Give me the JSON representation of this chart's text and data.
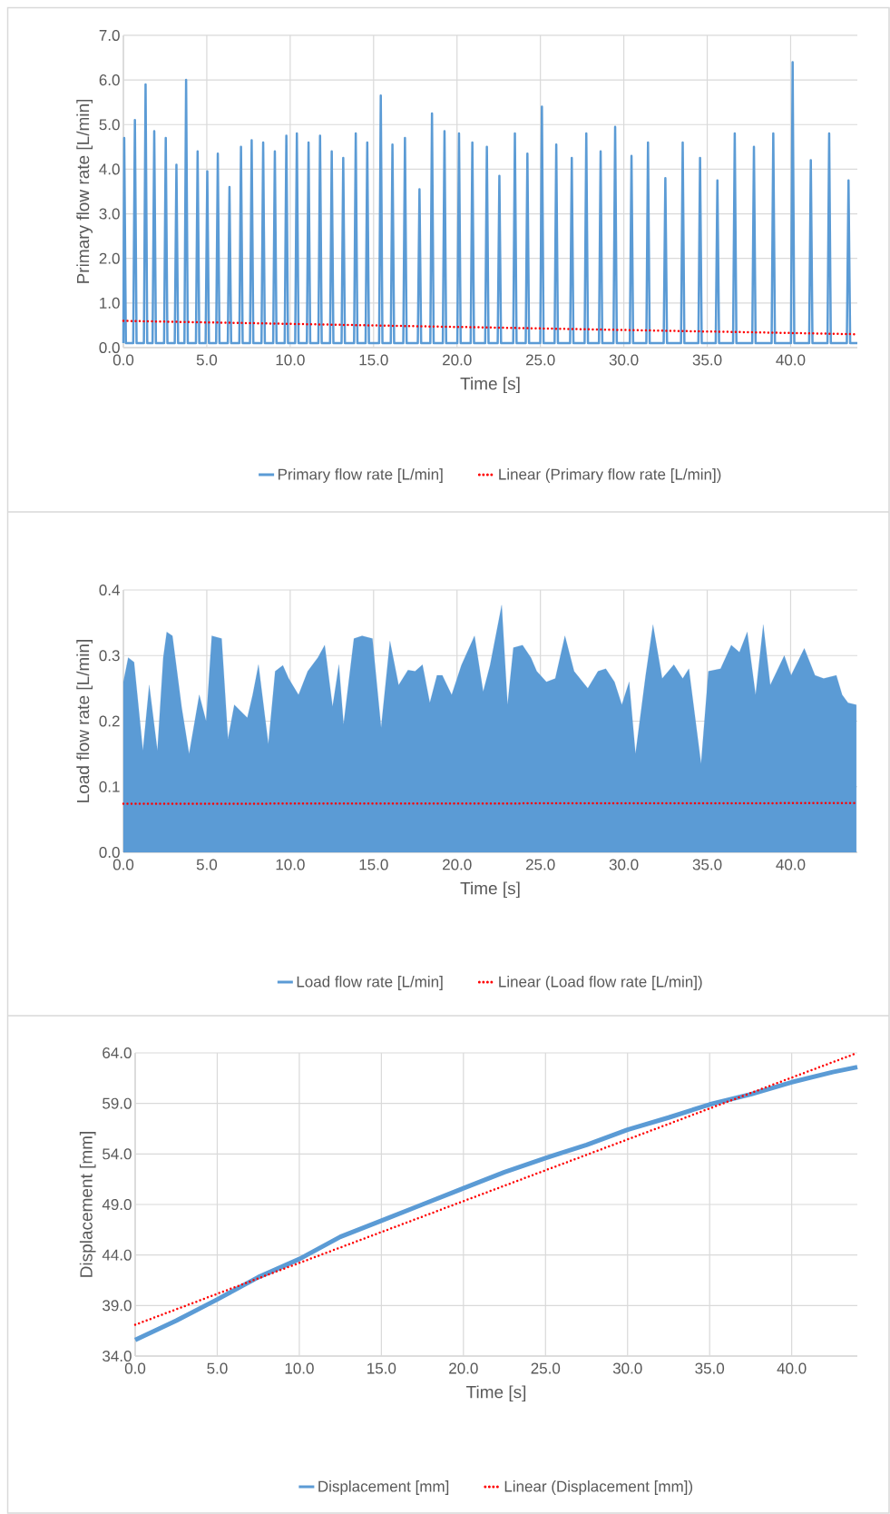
{
  "chart_data": [
    {
      "type": "line",
      "xlabel": "Time [s]",
      "ylabel": "Primary flow rate [L/min]",
      "xlim": [
        0,
        44
      ],
      "ylim": [
        0,
        7
      ],
      "xticks": [
        {
          "value": 0,
          "label": "0.0"
        },
        {
          "value": 5,
          "label": "5.0"
        },
        {
          "value": 10,
          "label": "10.0"
        },
        {
          "value": 15,
          "label": "15.0"
        },
        {
          "value": 20,
          "label": "20.0"
        },
        {
          "value": 25,
          "label": "25.0"
        },
        {
          "value": 30,
          "label": "30.0"
        },
        {
          "value": 35,
          "label": "35.0"
        },
        {
          "value": 40,
          "label": "40.0"
        }
      ],
      "yticks": [
        {
          "value": 0,
          "label": "0.0"
        },
        {
          "value": 1,
          "label": "1.0"
        },
        {
          "value": 2,
          "label": "2.0"
        },
        {
          "value": 3,
          "label": "3.0"
        },
        {
          "value": 4,
          "label": "4.0"
        },
        {
          "value": 5,
          "label": "5.0"
        },
        {
          "value": 6,
          "label": "6.0"
        },
        {
          "value": 7,
          "label": "7.0"
        }
      ],
      "grid": true,
      "legend": "bottom",
      "series": [
        {
          "name": "Primary flow rate [L/min]",
          "color": "#5b9bd5",
          "line_style": "solid",
          "x": [
            0.0,
            0.05,
            0.15,
            0.59,
            0.69,
            0.79,
            1.23,
            1.33,
            1.43,
            1.75,
            1.85,
            1.95,
            2.44,
            2.54,
            2.64,
            3.08,
            3.18,
            3.28,
            3.66,
            3.76,
            3.86,
            4.35,
            4.45,
            4.55,
            4.93,
            5.03,
            5.13,
            5.56,
            5.66,
            5.76,
            6.26,
            6.36,
            6.46,
            6.95,
            7.05,
            7.15,
            7.59,
            7.69,
            7.79,
            8.28,
            8.38,
            8.48,
            8.98,
            9.08,
            9.18,
            9.67,
            9.77,
            9.87,
            10.3,
            10.4,
            10.5,
            11.0,
            11.1,
            11.2,
            11.69,
            11.79,
            11.89,
            12.39,
            12.49,
            12.59,
            13.08,
            13.18,
            13.28,
            13.83,
            13.93,
            14.03,
            14.52,
            14.62,
            14.72,
            15.33,
            15.43,
            15.53,
            16.03,
            16.13,
            16.23,
            16.78,
            16.88,
            16.98,
            17.65,
            17.75,
            17.85,
            18.4,
            18.5,
            18.6,
            19.15,
            19.25,
            19.35,
            20.02,
            20.12,
            20.22,
            20.82,
            20.92,
            21.02,
            21.69,
            21.79,
            21.89,
            22.44,
            22.54,
            22.64,
            23.37,
            23.47,
            23.57,
            24.12,
            24.22,
            24.32,
            24.99,
            25.09,
            25.19,
            25.85,
            25.95,
            26.05,
            26.78,
            26.88,
            26.98,
            27.65,
            27.75,
            27.85,
            28.51,
            28.61,
            28.71,
            29.38,
            29.48,
            29.58,
            30.36,
            30.46,
            30.56,
            31.35,
            31.45,
            31.55,
            32.39,
            32.49,
            32.59,
            33.43,
            33.53,
            33.63,
            34.47,
            34.57,
            34.67,
            35.51,
            35.61,
            35.71,
            36.55,
            36.65,
            36.75,
            37.7,
            37.8,
            37.9,
            38.86,
            38.96,
            39.06,
            40.02,
            40.12,
            40.22,
            41.11,
            41.21,
            41.31,
            42.21,
            42.31,
            42.41,
            43.37,
            43.47,
            43.57,
            44.0
          ],
          "values": [
            0.1,
            4.7,
            0.1,
            0.1,
            5.1,
            0.1,
            0.1,
            5.9,
            0.1,
            0.1,
            4.85,
            0.1,
            0.1,
            4.7,
            0.1,
            0.1,
            4.1,
            0.1,
            0.1,
            6.0,
            0.1,
            0.1,
            4.4,
            0.1,
            0.1,
            3.95,
            0.1,
            0.1,
            4.35,
            0.1,
            0.1,
            3.6,
            0.1,
            0.1,
            4.5,
            0.1,
            0.1,
            4.65,
            0.1,
            0.1,
            4.6,
            0.1,
            0.1,
            4.4,
            0.1,
            0.1,
            4.75,
            0.1,
            0.1,
            4.8,
            0.1,
            0.1,
            4.6,
            0.1,
            0.1,
            4.75,
            0.1,
            0.1,
            4.4,
            0.1,
            0.1,
            4.25,
            0.1,
            0.1,
            4.8,
            0.1,
            0.1,
            4.6,
            0.1,
            0.1,
            5.65,
            0.1,
            0.1,
            4.55,
            0.1,
            0.1,
            4.7,
            0.1,
            0.1,
            3.55,
            0.1,
            0.1,
            5.25,
            0.1,
            0.1,
            4.85,
            0.1,
            0.1,
            4.8,
            0.1,
            0.1,
            4.6,
            0.1,
            0.1,
            4.5,
            0.1,
            0.1,
            3.85,
            0.1,
            0.1,
            4.8,
            0.1,
            0.1,
            4.35,
            0.1,
            0.1,
            5.4,
            0.1,
            0.1,
            4.55,
            0.1,
            0.1,
            4.25,
            0.1,
            0.1,
            4.8,
            0.1,
            0.1,
            4.4,
            0.1,
            0.1,
            4.95,
            0.1,
            0.1,
            4.3,
            0.1,
            0.1,
            4.6,
            0.1,
            0.1,
            3.8,
            0.1,
            0.1,
            4.6,
            0.1,
            0.1,
            4.25,
            0.1,
            0.1,
            3.75,
            0.1,
            0.1,
            4.8,
            0.1,
            0.1,
            4.5,
            0.1,
            0.1,
            4.8,
            0.1,
            0.1,
            6.4,
            0.1,
            0.1,
            4.2,
            0.1,
            0.1,
            4.8,
            0.1,
            0.1,
            3.75,
            0.1,
            0.1
          ]
        },
        {
          "name": "Linear (Primary flow rate [L/min])",
          "color": "#ff0000",
          "line_style": "dotted",
          "x": [
            0,
            44
          ],
          "values": [
            0.6,
            0.3
          ]
        }
      ]
    },
    {
      "type": "line",
      "xlabel": "Time [s]",
      "ylabel": "Load flow rate [L/min]",
      "xlim": [
        0,
        44
      ],
      "ylim": [
        0,
        0.4
      ],
      "xticks": [
        {
          "value": 0,
          "label": "0.0"
        },
        {
          "value": 5,
          "label": "5.0"
        },
        {
          "value": 10,
          "label": "10.0"
        },
        {
          "value": 15,
          "label": "15.0"
        },
        {
          "value": 20,
          "label": "20.0"
        },
        {
          "value": 25,
          "label": "25.0"
        },
        {
          "value": 30,
          "label": "30.0"
        },
        {
          "value": 35,
          "label": "35.0"
        },
        {
          "value": 40,
          "label": "40.0"
        }
      ],
      "yticks": [
        {
          "value": 0,
          "label": "0.0"
        },
        0.1,
        0.2,
        0.3,
        0.4
      ],
      "grid": true,
      "legend": "bottom",
      "series": [
        {
          "name": "Load flow rate [L/min]",
          "color": "#5b9bd5",
          "type": "area",
          "line_style": "solid",
          "x": [
            0,
            0.29,
            0.64,
            1.17,
            1.55,
            2.04,
            2.39,
            2.6,
            2.94,
            3.5,
            3.94,
            4.55,
            4.96,
            5.3,
            5.89,
            6.27,
            6.65,
            7.43,
            7.75,
            8.1,
            8.69,
            9.1,
            9.56,
            9.91,
            10.5,
            11.05,
            11.66,
            12.07,
            12.54,
            12.92,
            13.2,
            13.82,
            14.31,
            14.93,
            15.45,
            15.98,
            16.5,
            17.06,
            17.49,
            17.93,
            18.37,
            18.8,
            19.12,
            19.68,
            20.26,
            21.05,
            21.57,
            21.98,
            22.68,
            23.03,
            23.38,
            23.93,
            24.43,
            24.78,
            25.36,
            25.89,
            26.47,
            27.02,
            27.84,
            28.45,
            28.92,
            29.44,
            29.88,
            30.32,
            30.7,
            31.31,
            31.75,
            32.3,
            33.0,
            33.53,
            33.9,
            34.63,
            35.07,
            35.8,
            36.44,
            36.93,
            37.4,
            37.9,
            38.36,
            38.78,
            39.62,
            40.03,
            40.82,
            41.46,
            41.98,
            42.74,
            43.09,
            43.44,
            43.94
          ],
          "values": [
            0.26,
            0.297,
            0.29,
            0.155,
            0.255,
            0.155,
            0.297,
            0.336,
            0.33,
            0.22,
            0.15,
            0.24,
            0.2,
            0.33,
            0.326,
            0.173,
            0.225,
            0.205,
            0.24,
            0.286,
            0.165,
            0.276,
            0.285,
            0.265,
            0.24,
            0.276,
            0.297,
            0.316,
            0.222,
            0.286,
            0.195,
            0.326,
            0.33,
            0.326,
            0.19,
            0.322,
            0.255,
            0.278,
            0.276,
            0.286,
            0.228,
            0.27,
            0.27,
            0.24,
            0.285,
            0.33,
            0.245,
            0.285,
            0.377,
            0.225,
            0.312,
            0.316,
            0.297,
            0.276,
            0.26,
            0.265,
            0.33,
            0.276,
            0.25,
            0.276,
            0.28,
            0.26,
            0.225,
            0.26,
            0.15,
            0.27,
            0.347,
            0.265,
            0.286,
            0.265,
            0.28,
            0.135,
            0.276,
            0.28,
            0.316,
            0.305,
            0.336,
            0.24,
            0.347,
            0.255,
            0.3,
            0.27,
            0.311,
            0.27,
            0.265,
            0.27,
            0.24,
            0.228,
            0.225
          ]
        },
        {
          "name": "Linear (Load flow rate [L/min])",
          "color": "#ff0000",
          "line_style": "dotted",
          "x": [
            0,
            44
          ],
          "values": [
            0.074,
            0.075
          ]
        }
      ]
    },
    {
      "type": "line",
      "xlabel": "Time [s]",
      "ylabel": "Displacement [mm]",
      "xlim": [
        0,
        44
      ],
      "ylim": [
        34,
        64
      ],
      "xticks": [
        {
          "value": 0,
          "label": "0.0"
        },
        {
          "value": 5,
          "label": "5.0"
        },
        {
          "value": 10,
          "label": "10.0"
        },
        {
          "value": 15,
          "label": "15.0"
        },
        {
          "value": 20,
          "label": "20.0"
        },
        {
          "value": 25,
          "label": "25.0"
        },
        {
          "value": 30,
          "label": "30.0"
        },
        {
          "value": 35,
          "label": "35.0"
        },
        {
          "value": 40,
          "label": "40.0"
        }
      ],
      "yticks": [
        {
          "value": 34,
          "label": "34.0"
        },
        {
          "value": 39,
          "label": "39.0"
        },
        {
          "value": 44,
          "label": "44.0"
        },
        {
          "value": 49,
          "label": "49.0"
        },
        {
          "value": 54,
          "label": "54.0"
        },
        {
          "value": 59,
          "label": "59.0"
        },
        {
          "value": 64,
          "label": "64.0"
        }
      ],
      "grid": true,
      "legend": "bottom",
      "series": [
        {
          "name": "Displacement [mm]",
          "color": "#5b9bd5",
          "line_style": "solid",
          "x": [
            0,
            2.5,
            5,
            7.5,
            10,
            12.5,
            15,
            17.5,
            20,
            22.5,
            25,
            27.5,
            30,
            32.5,
            35,
            37.5,
            40,
            42.5,
            44
          ],
          "values": [
            35.6,
            37.5,
            39.6,
            41.8,
            43.6,
            45.8,
            47.4,
            49.0,
            50.6,
            52.2,
            53.6,
            54.9,
            56.4,
            57.6,
            58.9,
            59.9,
            61.1,
            62.1,
            62.6
          ]
        },
        {
          "name": "Linear (Displacement [mm])",
          "color": "#ff0000",
          "line_style": "dotted",
          "x": [
            0,
            44
          ],
          "values": [
            37.1,
            64.0
          ]
        }
      ]
    }
  ]
}
